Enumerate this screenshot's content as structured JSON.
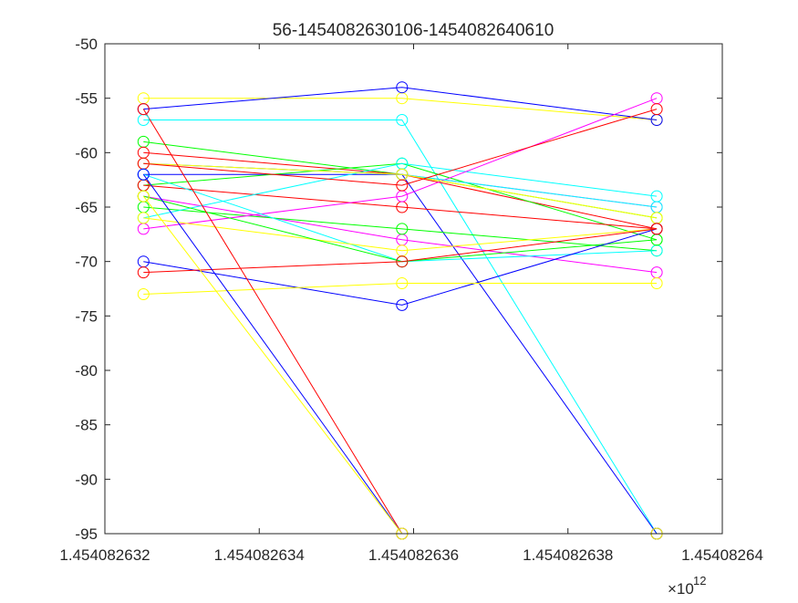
{
  "chart_data": {
    "type": "line",
    "title": "56-1454082630106-1454082640610",
    "xlabel": "",
    "ylabel": "",
    "x_exponent_label": "×10",
    "x_exponent_power": "12",
    "xlim": [
      1454082632000,
      1454082640000
    ],
    "ylim": [
      -95,
      -50
    ],
    "x_ticks": [
      1454082632000,
      1454082634000,
      1454082636000,
      1454082638000,
      1454082640000
    ],
    "x_tick_labels": [
      "1.454082632",
      "1.454082634",
      "1.454082636",
      "1.454082638",
      "1.45408264"
    ],
    "y_ticks": [
      -50,
      -55,
      -60,
      -65,
      -70,
      -75,
      -80,
      -85,
      -90,
      -95
    ],
    "y_tick_labels": [
      "-50",
      "-55",
      "-60",
      "-65",
      "-70",
      "-75",
      "-80",
      "-85",
      "-90",
      "-95"
    ],
    "grid": false,
    "x": [
      1454082632500,
      1454082635850,
      1454082639150
    ],
    "series": [
      {
        "color": "#ffff00",
        "values": [
          -55,
          -55,
          -57
        ]
      },
      {
        "color": "#0000ff",
        "values": [
          -56,
          -54,
          -57
        ]
      },
      {
        "color": "#00ffff",
        "values": [
          -57,
          -57,
          -95
        ]
      },
      {
        "color": "#00ff00",
        "values": [
          -59,
          -62,
          -66
        ]
      },
      {
        "color": "#ff0000",
        "values": [
          -60,
          -62,
          -67
        ]
      },
      {
        "color": "#ff00ff",
        "values": [
          -61,
          -62,
          -65
        ]
      },
      {
        "color": "#0000ff",
        "values": [
          -62,
          -62,
          -95
        ]
      },
      {
        "color": "#00ff00",
        "values": [
          -63,
          -61,
          -68
        ]
      },
      {
        "color": "#ff0000",
        "values": [
          -63,
          -65,
          -67
        ]
      },
      {
        "color": "#ff00ff",
        "values": [
          -64,
          -68,
          -71
        ]
      },
      {
        "color": "#00ff00",
        "values": [
          -65,
          -67,
          -69
        ]
      },
      {
        "color": "#00ffff",
        "values": [
          -66,
          -61,
          -64
        ]
      },
      {
        "color": "#ff00ff",
        "values": [
          -67,
          -64,
          -55
        ]
      },
      {
        "color": "#00ffff",
        "values": [
          -61,
          -62,
          -65
        ]
      },
      {
        "color": "#ffff00",
        "values": [
          -61,
          -62,
          -66
        ]
      },
      {
        "color": "#ff0000",
        "values": [
          -61,
          -63,
          -56
        ]
      },
      {
        "color": "#00ffff",
        "values": [
          -62,
          -70,
          -69
        ]
      },
      {
        "color": "#ffff00",
        "values": [
          -66,
          -69,
          -67
        ]
      },
      {
        "color": "#00ff00",
        "values": [
          -64,
          -70,
          -68
        ]
      },
      {
        "color": "#0000ff",
        "values": [
          -70,
          -74,
          -67
        ]
      },
      {
        "color": "#ff0000",
        "values": [
          -71,
          -70,
          -67
        ]
      },
      {
        "color": "#ffff00",
        "values": [
          -73,
          -72,
          -72
        ]
      },
      {
        "color": "#ff0000",
        "values": [
          -56,
          -95,
          -95
        ]
      },
      {
        "color": "#0000ff",
        "values": [
          -62,
          -95,
          -95
        ]
      },
      {
        "color": "#ffff00",
        "values": [
          -64,
          -95,
          -95
        ]
      }
    ]
  }
}
